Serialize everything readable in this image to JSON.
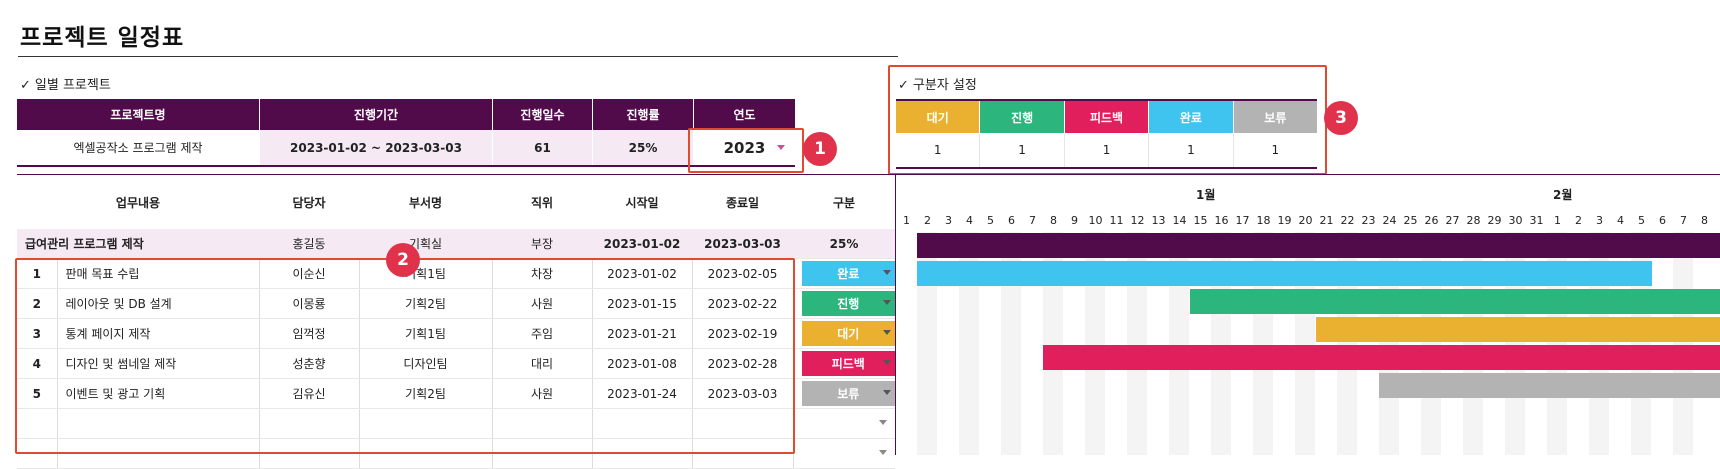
{
  "page_title": "프로젝트 일정표",
  "section_project": "일별 프로젝트",
  "section_category": "구분자 설정",
  "check_mark": "✓",
  "project_table": {
    "headers": [
      "프로젝트명",
      "진행기간",
      "진행일수",
      "진행률",
      "연도"
    ],
    "name": "엑셀공작소 프로그램 제작",
    "period": "2023-01-02 ~ 2023-03-03",
    "days": "61",
    "progress": "25%",
    "year": "2023"
  },
  "category_table": {
    "labels": [
      "대기",
      "진행",
      "피드백",
      "완료",
      "보류"
    ],
    "counts": [
      "1",
      "1",
      "1",
      "1",
      "1"
    ],
    "colors": [
      "#e9b12f",
      "#2cb57c",
      "#e01f5c",
      "#3ec4ee",
      "#b3b3b3"
    ]
  },
  "work_table": {
    "headers": [
      "업무내용",
      "담당자",
      "부서명",
      "직위",
      "시작일",
      "종료일",
      "구분"
    ],
    "summary": {
      "task": "급여관리 프로그램 제작",
      "owner": "홍길동",
      "dept": "기획실",
      "position": "부장",
      "start": "2023-01-02",
      "end": "2023-03-03",
      "progress": "25%"
    },
    "rows": [
      {
        "no": "1",
        "task": "판매 목표 수립",
        "owner": "이순신",
        "dept": "기획1팀",
        "position": "차장",
        "start": "2023-01-02",
        "end": "2023-02-05",
        "status": "완료",
        "color": "#3ec4ee"
      },
      {
        "no": "2",
        "task": "레이아웃 및 DB 설계",
        "owner": "이몽룡",
        "dept": "기획2팀",
        "position": "사원",
        "start": "2023-01-15",
        "end": "2023-02-22",
        "status": "진행",
        "color": "#2cb57c"
      },
      {
        "no": "3",
        "task": "통계 페이지 제작",
        "owner": "임꺽정",
        "dept": "기획1팀",
        "position": "주임",
        "start": "2023-01-21",
        "end": "2023-02-19",
        "status": "대기",
        "color": "#e9b12f"
      },
      {
        "no": "4",
        "task": "디자인 및 썸네일 제작",
        "owner": "성춘향",
        "dept": "디자인팀",
        "position": "대리",
        "start": "2023-01-08",
        "end": "2023-02-28",
        "status": "피드백",
        "color": "#e01f5c"
      },
      {
        "no": "5",
        "task": "이벤트 및 광고 기획",
        "owner": "김유신",
        "dept": "기획2팀",
        "position": "사원",
        "start": "2023-01-24",
        "end": "2023-03-03",
        "status": "보류",
        "color": "#b3b3b3"
      }
    ]
  },
  "gantt": {
    "month_labels": [
      "1월",
      "2월"
    ],
    "days": [
      "1",
      "2",
      "3",
      "4",
      "5",
      "6",
      "7",
      "8",
      "9",
      "10",
      "11",
      "12",
      "13",
      "14",
      "15",
      "16",
      "17",
      "18",
      "19",
      "20",
      "21",
      "22",
      "23",
      "24",
      "25",
      "26",
      "27",
      "28",
      "29",
      "30",
      "31",
      "1",
      "2",
      "3",
      "4",
      "5",
      "6",
      "7",
      "8"
    ],
    "summary_color": "#510b4a"
  },
  "annotations": [
    "1",
    "2",
    "3"
  ]
}
